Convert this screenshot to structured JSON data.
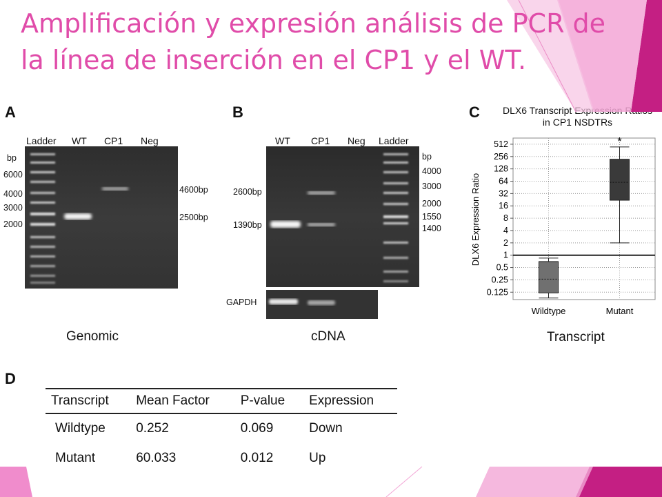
{
  "title": "Amplificación y expresión análisis de PCR de la línea de inserción en el CP1 y el WT.",
  "colors": {
    "accent": "#e04ca9",
    "accent_dark": "#c41f83",
    "accent_light": "#f3a6d6"
  },
  "panelA": {
    "letter": "A",
    "lanes": [
      "Ladder",
      "WT",
      "CP1",
      "Neg"
    ],
    "left_markers": [
      "bp",
      "6000",
      "4000",
      "3000",
      "2000"
    ],
    "right_markers": [
      "4600bp",
      "2500bp"
    ],
    "caption": "Genomic"
  },
  "panelB": {
    "letter": "B",
    "lanes": [
      "WT",
      "CP1",
      "Neg",
      "Ladder"
    ],
    "left_markers": [
      "2600bp",
      "1390bp"
    ],
    "right_markers": [
      "bp",
      "4000",
      "3000",
      "2000",
      "1550",
      "1400"
    ],
    "gapdh_label": "GAPDH",
    "caption": "cDNA"
  },
  "panelC": {
    "letter": "C",
    "caption": "Transcript",
    "chart_data": {
      "type": "box",
      "title": "DLX6 Transcript Expression Ratios in CP1 NSDTRs",
      "ylabel": "DLX6 Expression Ratio",
      "xlabel": "Transcript",
      "yscale": "log2",
      "yticks": [
        "512",
        "256",
        "128",
        "64",
        "32",
        "16",
        "8",
        "4",
        "2",
        "1",
        "0.5",
        "0.25",
        "0.125"
      ],
      "ytick_values": [
        512,
        256,
        128,
        64,
        32,
        16,
        8,
        4,
        2,
        1,
        0.5,
        0.25,
        0.125
      ],
      "categories": [
        "Wildtype",
        "Mutant"
      ],
      "boxes": [
        {
          "name": "Wildtype",
          "min": 0.09,
          "q1": 0.12,
          "median": 0.26,
          "q3": 0.7,
          "max": 0.85,
          "color": "#707070"
        },
        {
          "name": "Mutant",
          "min": 2,
          "q1": 22,
          "median": 60,
          "q3": 220,
          "max": 440,
          "color": "#3a3a3a"
        }
      ],
      "significance": "*",
      "grid": "dotted"
    }
  },
  "panelD": {
    "letter": "D",
    "headers": [
      "Transcript",
      "Mean Factor",
      "P-value",
      "Expression"
    ],
    "rows": [
      [
        "Wildtype",
        "0.252",
        "0.069",
        "Down"
      ],
      [
        "Mutant",
        "60.033",
        "0.012",
        "Up"
      ]
    ]
  }
}
